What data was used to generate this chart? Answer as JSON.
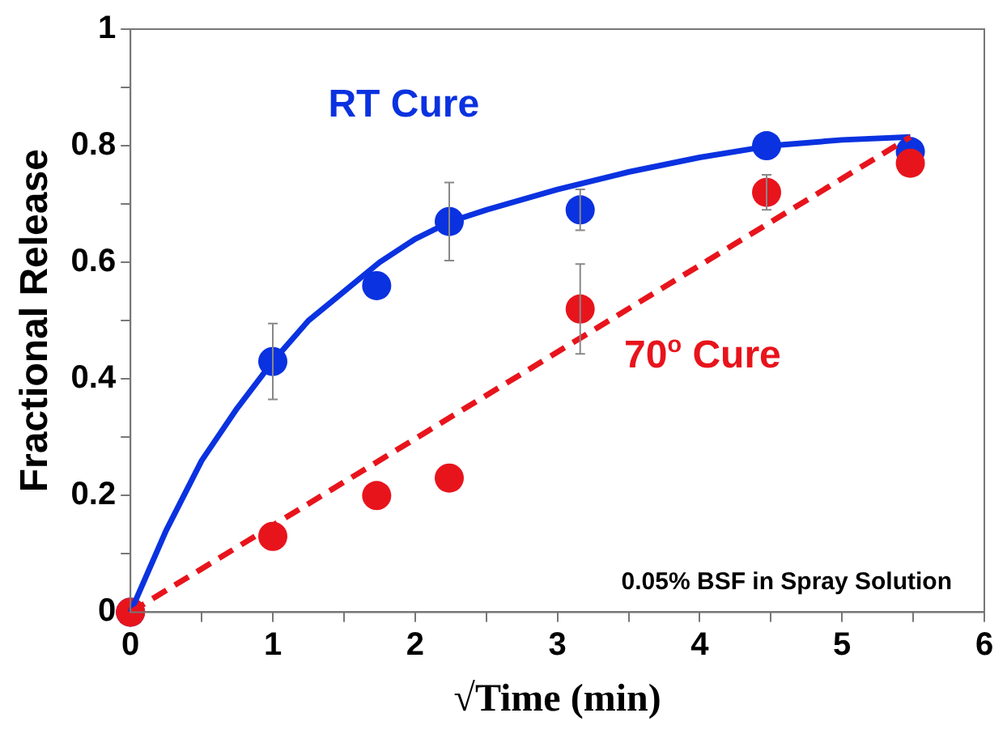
{
  "chart_data": {
    "type": "scatter",
    "xlabel": "√Time (min)",
    "ylabel": "Fractional Release",
    "xlim": [
      0,
      6
    ],
    "ylim": [
      0,
      1
    ],
    "xticks": [
      0,
      {
        "value": 0.5,
        "label": null
      },
      1,
      {
        "value": 1.5,
        "label": null
      },
      2,
      {
        "value": 2.5,
        "label": null
      },
      3,
      {
        "value": 3.5,
        "label": null
      },
      4,
      {
        "value": 4.5,
        "label": null
      },
      5,
      {
        "value": 5.5,
        "label": null
      },
      6
    ],
    "yticks": [
      0,
      {
        "value": 0.1,
        "label": null
      },
      {
        "value": 0.2,
        "label": "0.2"
      },
      {
        "value": 0.3,
        "label": null
      },
      {
        "value": 0.4,
        "label": "0.4"
      },
      {
        "value": 0.5,
        "label": null
      },
      {
        "value": 0.6,
        "label": "0.6"
      },
      {
        "value": 0.7,
        "label": null
      },
      {
        "value": 0.8,
        "label": "0.8"
      },
      {
        "value": 0.9,
        "label": null
      },
      1
    ],
    "grid": false,
    "legend": false,
    "marker": "circle",
    "series": [
      {
        "type": "line",
        "color": "#0a32e0",
        "marker": "none",
        "line_style": "solid",
        "x": [
          0,
          0.25,
          0.5,
          0.75,
          1,
          1.25,
          1.5,
          1.75,
          2,
          2.25,
          2.5,
          3,
          3.5,
          4,
          4.5,
          5,
          5.48
        ],
        "values": [
          0,
          0.14,
          0.26,
          0.35,
          0.43,
          0.5,
          0.55,
          0.6,
          0.64,
          0.67,
          0.69,
          0.725,
          0.755,
          0.78,
          0.8,
          0.81,
          0.815
        ]
      },
      {
        "type": "line",
        "color": "#e8141c",
        "marker": "none",
        "line_style": "dashed",
        "x": [
          0,
          5.48
        ],
        "values": [
          0,
          0.815
        ]
      },
      {
        "name": "RT Cure",
        "color": "#0a32e0",
        "x": [
          0,
          1,
          1.73,
          2.24,
          3.16,
          4.47,
          5.48
        ],
        "values": [
          0,
          0.43,
          0.56,
          0.67,
          0.69,
          0.8,
          0.79
        ],
        "errors": [
          null,
          0.065,
          null,
          0.067,
          0.035,
          null,
          null
        ]
      },
      {
        "name": "70$^{o}$ Cure",
        "color": "#e8141c",
        "x": [
          0,
          1,
          1.73,
          2.24,
          3.16,
          4.47,
          5.48
        ],
        "values": [
          0,
          0.13,
          0.2,
          0.23,
          0.52,
          0.72,
          0.77
        ],
        "errors": [
          null,
          null,
          null,
          null,
          0.077,
          0.03,
          null
        ]
      }
    ],
    "annotations": [
      "0.05% BSF in Spray Solution"
    ]
  }
}
